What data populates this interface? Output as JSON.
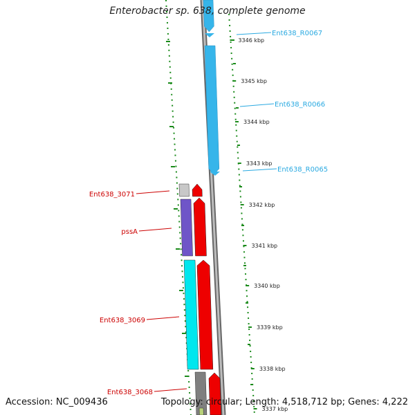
{
  "title": "Enterobacter sp. 638, complete genome",
  "footer": {
    "accession": "Accession: NC_009436",
    "summary": "Topology: circular; Length: 4,518,712 bp; Genes: 4,222"
  },
  "colors": {
    "rna_gene": "#36b5ea",
    "rna_label": "#29a9e1",
    "cds_forward": "#ee0000",
    "cds_label": "#cc0000",
    "cog_purple": "#6f55c8",
    "cog_cyan": "#00e7ee",
    "cog_gray": "#7f7f7f",
    "cog_light": "#c8c8c8",
    "backbone": "#8a8a8a",
    "gc_dots": "#1a8a1a"
  },
  "scale_ticks": [
    {
      "label": "3346 kbp"
    },
    {
      "label": "3345 kbp"
    },
    {
      "label": "3344 kbp"
    },
    {
      "label": "3343 kbp"
    },
    {
      "label": "3342 kbp"
    },
    {
      "label": "3341 kbp"
    },
    {
      "label": "3340 kbp"
    },
    {
      "label": "3339 kbp"
    },
    {
      "label": "3338 kbp"
    },
    {
      "label": "3337 kbp"
    }
  ],
  "rna_labels": [
    {
      "label": "Ent638_R0067"
    },
    {
      "label": "Ent638_R0066"
    },
    {
      "label": "Ent638_R0065"
    }
  ],
  "gene_labels": [
    {
      "label": "Ent638_3071"
    },
    {
      "label": "pssA"
    },
    {
      "label": "Ent638_3069"
    },
    {
      "label": "Ent638_3068"
    }
  ]
}
